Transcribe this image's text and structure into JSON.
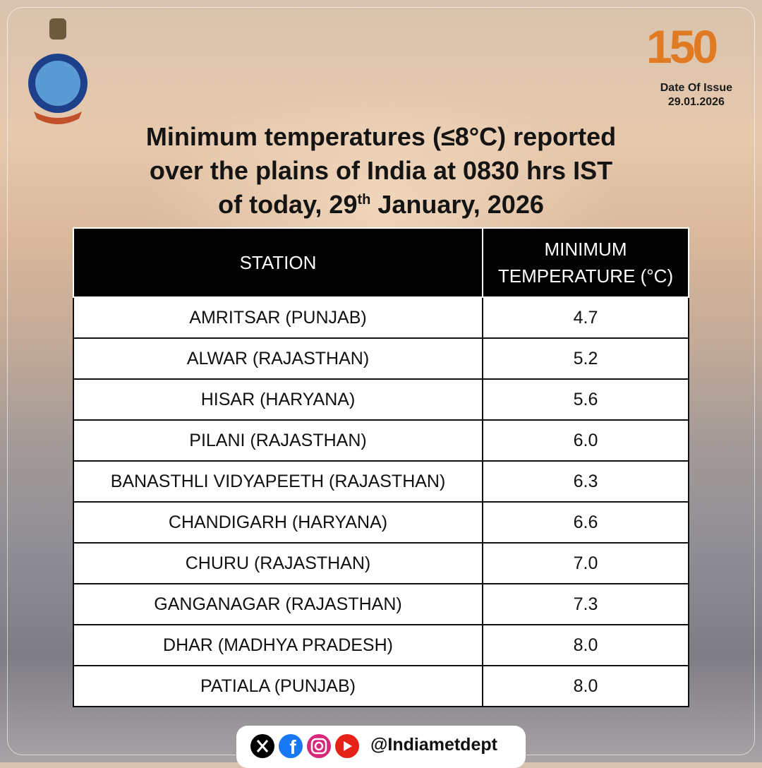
{
  "header": {
    "logo_text": "150",
    "date_label": "Date Of Issue",
    "date": "29.01.2026"
  },
  "title": {
    "line1": "Minimum temperatures (≤8°C)  reported",
    "line2": "over the plains of India at 0830 hrs IST",
    "line3_start": "of today, 29",
    "line3_sup": "th",
    "line3_end": " January, 2026"
  },
  "table": {
    "columns": [
      "STATION",
      "MINIMUM TEMPERATURE (°C)"
    ],
    "rows": [
      [
        "AMRITSAR (PUNJAB)",
        "4.7"
      ],
      [
        "ALWAR (RAJASTHAN)",
        "5.2"
      ],
      [
        "HISAR (HARYANA)",
        "5.6"
      ],
      [
        "PILANI (RAJASTHAN)",
        "6.0"
      ],
      [
        "BANASTHLI VIDYAPEETH (RAJASTHAN)",
        "6.3"
      ],
      [
        "CHANDIGARH (HARYANA)",
        "6.6"
      ],
      [
        "CHURU (RAJASTHAN)",
        "7.0"
      ],
      [
        "GANGANAGAR (RAJASTHAN)",
        "7.3"
      ],
      [
        "DHAR (MADHYA PRADESH)",
        "8.0"
      ],
      [
        "PATIALA (PUNJAB)",
        "8.0"
      ]
    ]
  },
  "footer": {
    "handle": "@Indiametdept"
  }
}
